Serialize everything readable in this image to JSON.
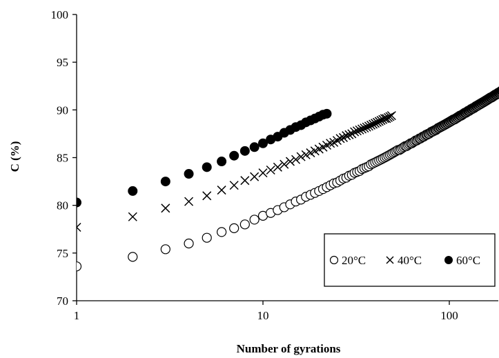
{
  "chart_data": {
    "type": "scatter",
    "title": "",
    "xlabel": "Number of gyrations",
    "ylabel": "C (%)",
    "x_scale": "log",
    "xlim": [
      1,
      200
    ],
    "ylim": [
      70,
      100
    ],
    "x_ticks": [
      1,
      10,
      100
    ],
    "x_tick_labels": [
      "1",
      "10",
      "100"
    ],
    "y_ticks": [
      70,
      75,
      80,
      85,
      90,
      95,
      100
    ],
    "y_tick_labels": [
      "70",
      "75",
      "80",
      "85",
      "90",
      "95",
      "100"
    ],
    "grid": false,
    "legend_position": "bottom-right",
    "series": [
      {
        "name": "20°C",
        "marker": "open-circle",
        "gyrations_start": 1,
        "gyrations_end": 200,
        "values": [
          73.6,
          74.6,
          75.4,
          76.0,
          76.6,
          77.2,
          77.6,
          78.0,
          78.5,
          78.9,
          79.2,
          79.5,
          79.8,
          80.1,
          80.4,
          80.6,
          80.9,
          81.1,
          81.3,
          81.5,
          81.7,
          81.9,
          82.1,
          82.3,
          82.4,
          82.6,
          82.8,
          82.9,
          83.1,
          83.2,
          83.4,
          83.5,
          83.6,
          83.8,
          83.9,
          84.0,
          84.1,
          84.3,
          84.4,
          84.5,
          84.6,
          84.7,
          84.8,
          84.9,
          85.0,
          85.1,
          85.2,
          85.3,
          85.4,
          85.5,
          85.6,
          85.7,
          85.8,
          85.8,
          85.9,
          86.0,
          86.1,
          86.2,
          86.2,
          86.3,
          86.4,
          86.5,
          86.5,
          86.6,
          86.7,
          86.8,
          86.8,
          86.9,
          87.0,
          87.0,
          87.1,
          87.2,
          87.2,
          87.3,
          87.4,
          87.4,
          87.5,
          87.5,
          87.6,
          87.7,
          87.7,
          87.8,
          87.8,
          87.9,
          87.9,
          88.0,
          88.1,
          88.1,
          88.2,
          88.2,
          88.3,
          88.3,
          88.4,
          88.4,
          88.5,
          88.5,
          88.6,
          88.6,
          88.7,
          88.7,
          88.8,
          88.8,
          88.9,
          88.9,
          89.0,
          89.0,
          89.0,
          89.1,
          89.1,
          89.2,
          89.2,
          89.3,
          89.3,
          89.4,
          89.4,
          89.4,
          89.5,
          89.5,
          89.6,
          89.6,
          89.7,
          89.7,
          89.7,
          89.8,
          89.8,
          89.9,
          89.9,
          89.9,
          90.0,
          90.0,
          90.1,
          90.1,
          90.1,
          90.2,
          90.2,
          90.2,
          90.3,
          90.3,
          90.4,
          90.4,
          90.4,
          90.5,
          90.5,
          90.5,
          90.6,
          90.6,
          90.6,
          90.7,
          90.7,
          90.7,
          90.8,
          90.8,
          90.8,
          90.9,
          90.9,
          90.9,
          91.0,
          91.0,
          91.0,
          91.1,
          91.1,
          91.1,
          91.2,
          91.2,
          91.2,
          91.3,
          91.3,
          91.3,
          91.3,
          91.4,
          91.4,
          91.4,
          91.5,
          91.5,
          91.5,
          91.6,
          91.6,
          91.6,
          91.6,
          91.7,
          91.7,
          91.7,
          91.8,
          91.8,
          91.8,
          91.8,
          91.9,
          91.9,
          91.9,
          92.0,
          92.0,
          92.0,
          92.0,
          92.1,
          92.1,
          92.1,
          92.1,
          92.2,
          92.2,
          92.2
        ]
      },
      {
        "name": "40°C",
        "marker": "x",
        "gyrations_start": 1,
        "gyrations_end": 49,
        "values": [
          77.7,
          78.8,
          79.7,
          80.4,
          81.0,
          81.6,
          82.1,
          82.6,
          83.0,
          83.4,
          83.7,
          84.0,
          84.3,
          84.6,
          84.8,
          85.1,
          85.3,
          85.5,
          85.7,
          85.9,
          86.1,
          86.3,
          86.5,
          86.6,
          86.8,
          87.0,
          87.1,
          87.3,
          87.4,
          87.5,
          87.7,
          87.8,
          87.9,
          88.0,
          88.1,
          88.2,
          88.3,
          88.4,
          88.5,
          88.6,
          88.7,
          88.8,
          88.9,
          89.0,
          89.1,
          89.1,
          89.2,
          89.3,
          89.4
        ]
      },
      {
        "name": "60°C",
        "marker": "filled-circle",
        "gyrations_start": 1,
        "gyrations_end": 22,
        "values": [
          80.3,
          81.5,
          82.5,
          83.3,
          84.0,
          84.6,
          85.2,
          85.7,
          86.1,
          86.5,
          86.9,
          87.2,
          87.6,
          87.9,
          88.2,
          88.4,
          88.7,
          88.9,
          89.1,
          89.3,
          89.5,
          89.6
        ]
      }
    ]
  }
}
